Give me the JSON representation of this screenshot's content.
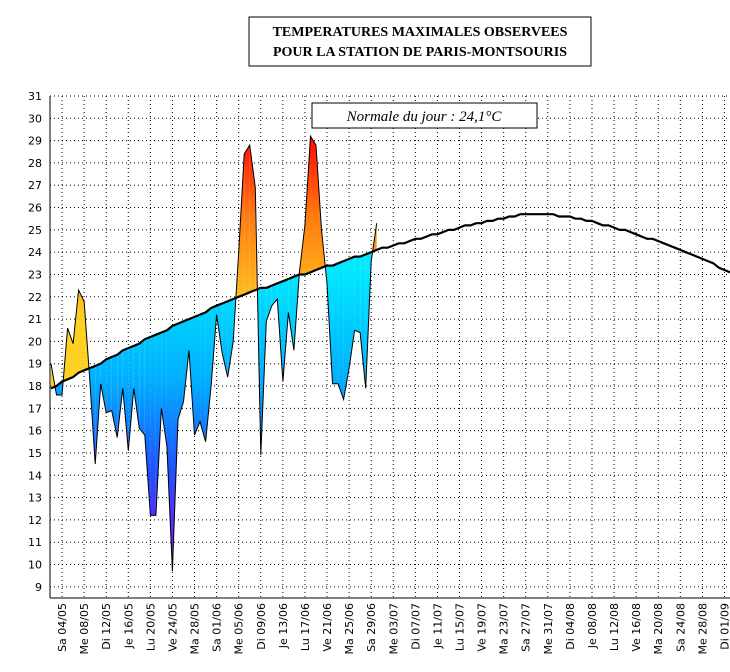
{
  "chart_data": {
    "type": "area",
    "title": "TEMPERATURES MAXIMALES OBSERVEES",
    "subtitle": "POUR LA STATION DE PARIS-MONTSOURIS",
    "annotation": "Normale du jour : 24,1°C",
    "x": [
      "02/05",
      "03/05",
      "04/05",
      "05/05",
      "06/05",
      "07/05",
      "08/05",
      "09/05",
      "10/05",
      "11/05",
      "12/05",
      "13/05",
      "14/05",
      "15/05",
      "16/05",
      "17/05",
      "18/05",
      "19/05",
      "20/05",
      "21/05",
      "22/05",
      "23/05",
      "24/05",
      "25/05",
      "26/05",
      "27/05",
      "28/05",
      "29/05",
      "30/05",
      "31/05",
      "01/06",
      "02/06",
      "03/06",
      "04/06",
      "05/06",
      "06/06",
      "07/06",
      "08/06",
      "09/06",
      "10/06",
      "11/06",
      "12/06",
      "13/06",
      "14/06",
      "15/06",
      "16/06",
      "17/06",
      "18/06",
      "19/06",
      "20/06",
      "21/06",
      "22/06",
      "23/06",
      "24/06",
      "25/06",
      "26/06",
      "27/06",
      "28/06",
      "29/06",
      "30/06",
      "01/07",
      "02/07",
      "03/07",
      "04/07",
      "05/07",
      "06/07",
      "07/07",
      "08/07",
      "09/07",
      "10/07",
      "11/07",
      "12/07",
      "13/07",
      "14/07",
      "15/07",
      "16/07",
      "17/07",
      "18/07",
      "19/07",
      "20/07",
      "21/07",
      "22/07",
      "23/07",
      "24/07",
      "25/07",
      "26/07",
      "27/07",
      "28/07",
      "29/07",
      "30/07",
      "31/07",
      "01/08",
      "02/08",
      "03/08",
      "04/08",
      "05/08",
      "06/08",
      "07/08",
      "08/08",
      "09/08",
      "10/08",
      "11/08",
      "12/08",
      "13/08",
      "14/08",
      "15/08",
      "16/08",
      "17/08",
      "18/08",
      "19/08",
      "20/08",
      "21/08",
      "22/08",
      "23/08",
      "24/08",
      "25/08",
      "26/08",
      "27/08",
      "28/08",
      "29/08",
      "30/08",
      "31/08",
      "01/09",
      "02/09"
    ],
    "series": [
      {
        "color": "#000000",
        "values": [
          19.0,
          17.6,
          17.6,
          20.6,
          19.9,
          22.3,
          21.8,
          18.4,
          14.5,
          18.1,
          16.8,
          16.9,
          15.7,
          17.9,
          15.1,
          17.9,
          16.1,
          15.8,
          12.2,
          12.2,
          17.0,
          15.3,
          9.7,
          16.5,
          17.3,
          19.6,
          15.8,
          16.4,
          15.5,
          18.0,
          21.2,
          19.5,
          18.4,
          20.0,
          24.0,
          28.4,
          28.8,
          26.9,
          14.9,
          20.9,
          21.6,
          21.9,
          18.2,
          21.3,
          19.6,
          23.1,
          25.2,
          29.2,
          28.8,
          25.0,
          22.6,
          18.1,
          18.1,
          17.4,
          18.8,
          20.5,
          20.4,
          17.9,
          23.6,
          25.3,
          null,
          null,
          null,
          null,
          null,
          null,
          null,
          null,
          null,
          null,
          null,
          null,
          null,
          null,
          null,
          null,
          null,
          null,
          null,
          null,
          null,
          null,
          null,
          null,
          null,
          null,
          null,
          null,
          null,
          null,
          null,
          null,
          null,
          null,
          null,
          null,
          null,
          null,
          null,
          null,
          null,
          null,
          null,
          null,
          null,
          null,
          null,
          null,
          null,
          null,
          null,
          null,
          null,
          null,
          null,
          null,
          null,
          null,
          null,
          null,
          null,
          null,
          null,
          null
        ]
      },
      {
        "color": "#000000",
        "values": [
          17.9,
          18.0,
          18.2,
          18.3,
          18.4,
          18.6,
          18.7,
          18.8,
          18.9,
          19.0,
          19.2,
          19.3,
          19.4,
          19.6,
          19.7,
          19.8,
          19.9,
          20.1,
          20.2,
          20.3,
          20.4,
          20.5,
          20.7,
          20.8,
          20.9,
          21.0,
          21.1,
          21.2,
          21.3,
          21.5,
          21.6,
          21.7,
          21.8,
          21.9,
          22.0,
          22.1,
          22.2,
          22.3,
          22.4,
          22.4,
          22.5,
          22.6,
          22.7,
          22.8,
          22.9,
          23.0,
          23.0,
          23.1,
          23.2,
          23.3,
          23.4,
          23.4,
          23.5,
          23.6,
          23.7,
          23.8,
          23.8,
          23.9,
          24.0,
          24.1,
          24.2,
          24.2,
          24.3,
          24.4,
          24.4,
          24.5,
          24.6,
          24.6,
          24.7,
          24.8,
          24.8,
          24.9,
          25.0,
          25.0,
          25.1,
          25.2,
          25.2,
          25.3,
          25.3,
          25.4,
          25.4,
          25.5,
          25.5,
          25.6,
          25.6,
          25.7,
          25.7,
          25.7,
          25.7,
          25.7,
          25.7,
          25.7,
          25.6,
          25.6,
          25.6,
          25.5,
          25.5,
          25.4,
          25.4,
          25.3,
          25.2,
          25.2,
          25.1,
          25.0,
          25.0,
          24.9,
          24.8,
          24.7,
          24.6,
          24.6,
          24.5,
          24.4,
          24.3,
          24.2,
          24.1,
          24.0,
          23.9,
          23.8,
          23.7,
          23.6,
          23.5,
          23.3,
          23.2,
          23.1
        ]
      }
    ],
    "ylim": [
      8.5,
      31
    ],
    "yticks": [
      9,
      10,
      11,
      12,
      13,
      14,
      15,
      16,
      17,
      18,
      19,
      20,
      21,
      22,
      23,
      24,
      25,
      26,
      27,
      28,
      29,
      30,
      31
    ],
    "xticks": [
      {
        "value": "04/05",
        "label": "Sa 04/05"
      },
      {
        "value": "08/05",
        "label": "Me 08/05"
      },
      {
        "value": "12/05",
        "label": "Di 12/05"
      },
      {
        "value": "16/05",
        "label": "Je 16/05"
      },
      {
        "value": "20/05",
        "label": "Lu 20/05"
      },
      {
        "value": "24/05",
        "label": "Ve 24/05"
      },
      {
        "value": "28/05",
        "label": "Ma 28/05"
      },
      {
        "value": "01/06",
        "label": "Sa 01/06"
      },
      {
        "value": "05/06",
        "label": "Me 05/06"
      },
      {
        "value": "09/06",
        "label": "Di 09/06"
      },
      {
        "value": "13/06",
        "label": "Je 13/06"
      },
      {
        "value": "17/06",
        "label": "Lu 17/06"
      },
      {
        "value": "21/06",
        "label": "Ve 21/06"
      },
      {
        "value": "25/06",
        "label": "Ma 25/06"
      },
      {
        "value": "29/06",
        "label": "Sa 29/06"
      },
      {
        "value": "03/07",
        "label": "Me 03/07"
      },
      {
        "value": "07/07",
        "label": "Di 07/07"
      },
      {
        "value": "11/07",
        "label": "Je 11/07"
      },
      {
        "value": "15/07",
        "label": "Lu 15/07"
      },
      {
        "value": "19/07",
        "label": "Ve 19/07"
      },
      {
        "value": "23/07",
        "label": "Ma 23/07"
      },
      {
        "value": "27/07",
        "label": "Sa 27/07"
      },
      {
        "value": "31/07",
        "label": "Me 31/07"
      },
      {
        "value": "04/08",
        "label": "Di 04/08"
      },
      {
        "value": "08/08",
        "label": "Je 08/08"
      },
      {
        "value": "12/08",
        "label": "Lu 12/08"
      },
      {
        "value": "16/08",
        "label": "Ve 16/08"
      },
      {
        "value": "20/08",
        "label": "Ma 20/08"
      },
      {
        "value": "24/08",
        "label": "Sa 24/08"
      },
      {
        "value": "28/08",
        "label": "Me 28/08"
      },
      {
        "value": "01/09",
        "label": "Di 01/09"
      }
    ],
    "grid": true
  }
}
